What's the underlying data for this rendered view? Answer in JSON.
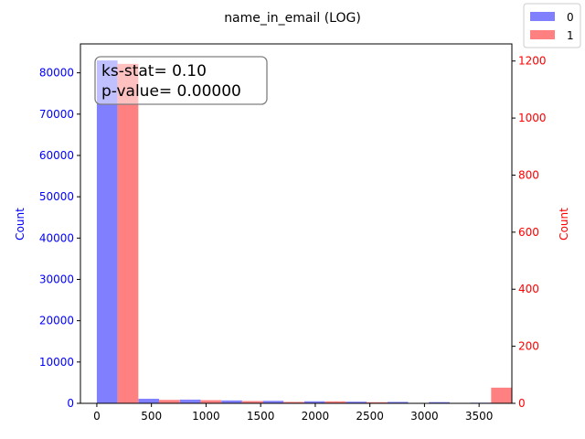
{
  "chart_data": {
    "type": "bar",
    "title": "name_in_email (LOG)",
    "xlabel": "",
    "ylabel_left": "Count",
    "ylabel_right": "Count",
    "xlim": [
      -150,
      3800
    ],
    "ylim_left": [
      0,
      87000
    ],
    "ylim_right": [
      0,
      1260
    ],
    "x_ticks": [
      0,
      500,
      1000,
      1500,
      2000,
      2500,
      3000,
      3500
    ],
    "y_ticks_left": [
      0,
      10000,
      20000,
      30000,
      40000,
      50000,
      60000,
      70000,
      80000
    ],
    "y_ticks_right": [
      0,
      200,
      400,
      600,
      800,
      1000,
      1200
    ],
    "bin_width": 380,
    "bin_starts": [
      0,
      380,
      760,
      1140,
      1520,
      1900,
      2280,
      2660,
      3040,
      3420
    ],
    "series": [
      {
        "name": "0",
        "axis": "left",
        "color": "#8080ff",
        "values": [
          83000,
          1100,
          900,
          700,
          600,
          500,
          400,
          350,
          300,
          150
        ]
      },
      {
        "name": "1",
        "axis": "right",
        "color": "#ff8080",
        "values": [
          1190,
          12,
          11,
          8,
          5,
          7,
          4,
          1,
          0,
          55
        ]
      }
    ],
    "legend": {
      "placement": "top-right"
    },
    "annotation": {
      "lines": [
        "ks-stat= 0.10",
        "p-value= 0.00000"
      ]
    },
    "colors": {
      "left_axis": "#0000ff",
      "right_axis": "#ff0000"
    },
    "grid": false
  }
}
